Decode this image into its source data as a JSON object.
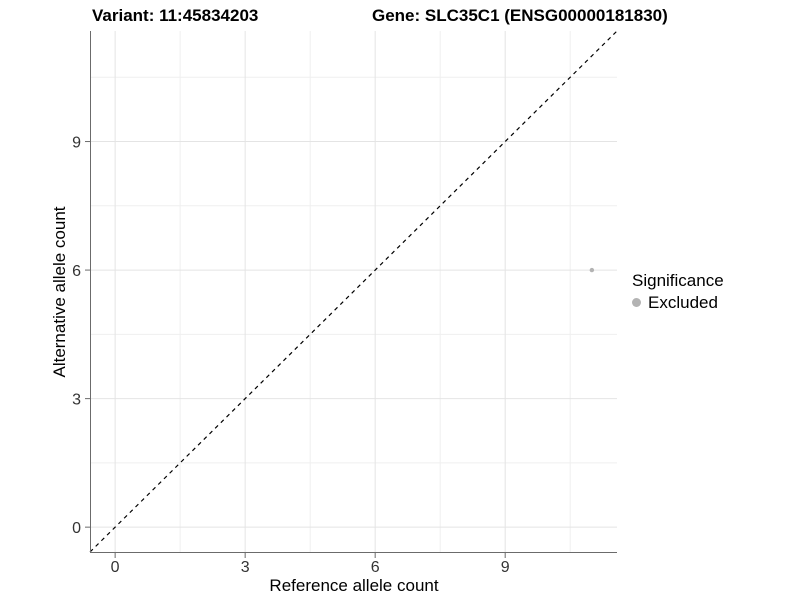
{
  "chart_data": {
    "type": "scatter",
    "title_left": "Variant: 11:45834203",
    "title_right": "Gene: SLC35C1 (ENSG00000181830)",
    "xlabel": "Reference allele count",
    "ylabel": "Alternative allele count",
    "xlim": [
      -0.58,
      11.58
    ],
    "ylim": [
      -0.58,
      11.58
    ],
    "x_ticks": [
      0,
      3,
      6,
      9
    ],
    "y_ticks": [
      0,
      3,
      6,
      9
    ],
    "x_minor_ticks": [
      1.5,
      4.5,
      7.5,
      10.5
    ],
    "y_minor_ticks": [
      1.5,
      4.5,
      7.5,
      10.5
    ],
    "grid": true,
    "series": [
      {
        "name": "Excluded",
        "color": "#b3b3b3",
        "points": [
          {
            "x": 11,
            "y": 6
          }
        ]
      }
    ],
    "reference_line": {
      "type": "identity",
      "style": "dashed",
      "color": "#000000"
    },
    "legend": {
      "position": "right",
      "title": "Significance",
      "items": [
        {
          "label": "Excluded",
          "color": "#b3b3b3",
          "marker": "circle"
        }
      ]
    },
    "colors": {
      "background": "#ffffff",
      "grid_major": "#e4e4e4",
      "grid_minor": "#efefef",
      "axis_line": "#6b6b6b",
      "tick_mark": "#6b6b6b",
      "tick_label": "#333333"
    }
  }
}
